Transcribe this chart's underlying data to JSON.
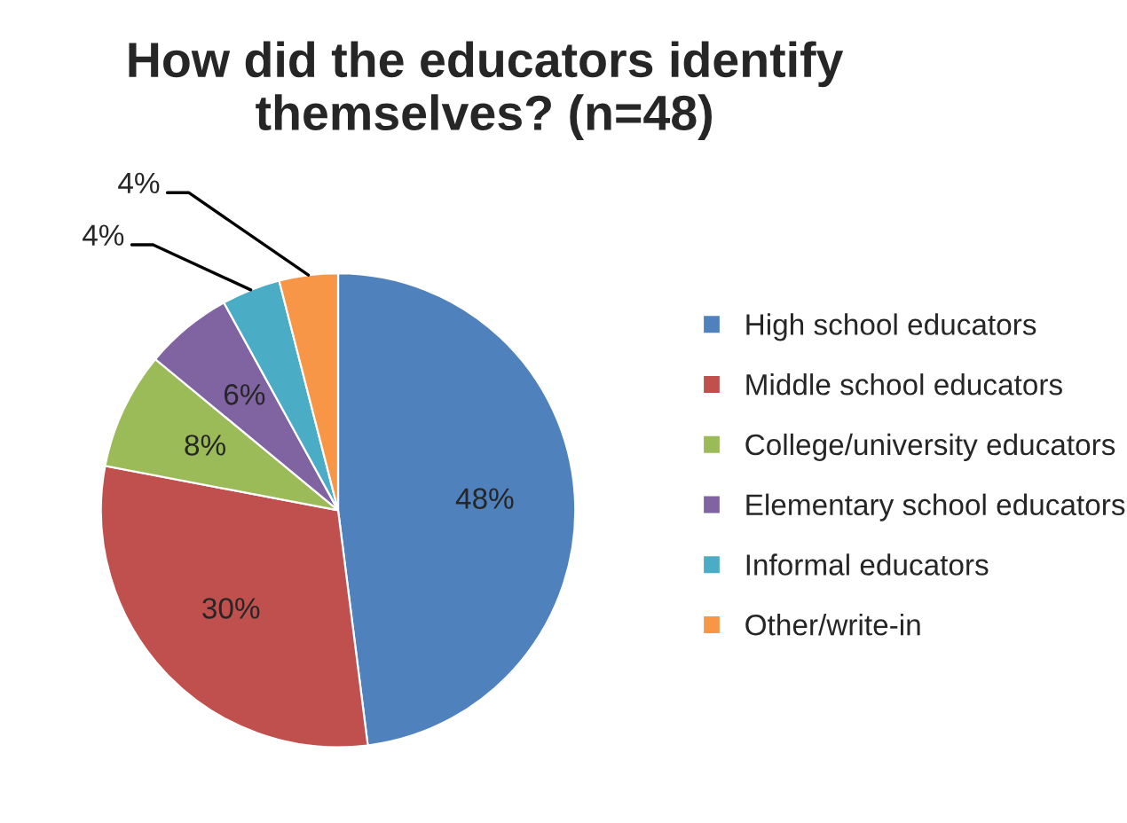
{
  "chart_data": {
    "type": "pie",
    "title": "How did the educators identify\nthemselves? (n=48)",
    "categories": [
      "High school educators",
      "Middle school educators",
      "College/university educators",
      "Elementary school educators",
      "Informal educators",
      "Other/write-in"
    ],
    "values": [
      48,
      30,
      8,
      6,
      4,
      4
    ],
    "value_labels": [
      "48%",
      "30%",
      "8%",
      "6%",
      "4%",
      "4%"
    ],
    "colors": [
      "#4f81bd",
      "#c0504d",
      "#9bbb59",
      "#8064a2",
      "#4bacc6",
      "#f79646"
    ],
    "legend": "right"
  }
}
